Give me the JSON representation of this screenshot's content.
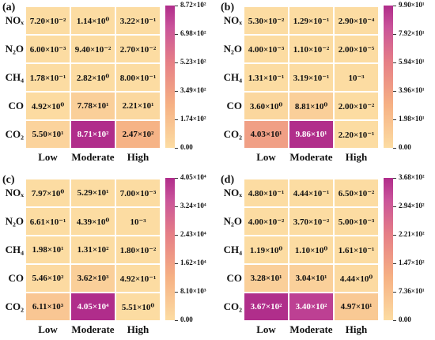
{
  "chart_data": [
    {
      "type": "heatmap",
      "panel_label": "(a)",
      "rows": [
        "NOₓ",
        "N₂O",
        "CH₄",
        "CO",
        "CO₂"
      ],
      "cols": [
        "Low",
        "Moderate",
        "High"
      ],
      "labels": [
        [
          "7.20×10⁻²",
          "1.14×10⁰",
          "3.22×10⁻¹"
        ],
        [
          "6.00×10⁻³",
          "9.40×10⁻²",
          "2.70×10⁻²"
        ],
        [
          "1.78×10⁻¹",
          "2.82×10⁰",
          "8.00×10⁻¹"
        ],
        [
          "4.92×10⁰",
          "7.78×10¹",
          "2.21×10¹"
        ],
        [
          "5.50×10¹",
          "8.71×10²",
          "2.47×10²"
        ]
      ],
      "values": [
        [
          0.072,
          1.14,
          0.322
        ],
        [
          0.006,
          0.094,
          0.027
        ],
        [
          0.178,
          2.82,
          0.8
        ],
        [
          4.92,
          77.8,
          22.1
        ],
        [
          55.0,
          871,
          247
        ]
      ],
      "vmin": 0,
      "vmax": 872,
      "colorbar_ticks": [
        "8.72×10²",
        "6.98×10²",
        "5.23×10²",
        "3.49×10²",
        "1.74×10²",
        "0.00"
      ]
    },
    {
      "type": "heatmap",
      "panel_label": "(b)",
      "rows": [
        "NOₓ",
        "N₂O",
        "CH₄",
        "CO",
        "CO₂"
      ],
      "cols": [
        "Low",
        "Moderate",
        "High"
      ],
      "labels": [
        [
          "5.30×10⁻²",
          "1.29×10⁻¹",
          "2.90×10⁻⁴"
        ],
        [
          "4.00×10⁻³",
          "1.10×10⁻²",
          "2.00×10⁻⁵"
        ],
        [
          "1.31×10⁻¹",
          "3.19×10⁻¹",
          "10⁻³"
        ],
        [
          "3.60×10⁰",
          "8.81×10⁰",
          "2.00×10⁻²"
        ],
        [
          "4.03×10¹",
          "9.86×10¹",
          "2.20×10⁻¹"
        ]
      ],
      "values": [
        [
          0.053,
          0.129,
          0.00029
        ],
        [
          0.004,
          0.011,
          2e-05
        ],
        [
          0.131,
          0.319,
          0.001
        ],
        [
          3.6,
          8.81,
          0.02
        ],
        [
          40.3,
          98.6,
          0.22
        ]
      ],
      "vmin": 0,
      "vmax": 99.0,
      "colorbar_ticks": [
        "9.90×10¹",
        "7.92×10¹",
        "5.94×10¹",
        "3.96×10¹",
        "1.98×10¹",
        "0.00"
      ]
    },
    {
      "type": "heatmap",
      "panel_label": "(c)",
      "rows": [
        "NOₓ",
        "N₂O",
        "CH₄",
        "CO",
        "CO₂"
      ],
      "cols": [
        "Low",
        "Moderate",
        "High"
      ],
      "labels": [
        [
          "7.97×10⁰",
          "5.29×10¹",
          "7.00×10⁻³"
        ],
        [
          "6.61×10⁻¹",
          "4.39×10⁰",
          "10⁻³"
        ],
        [
          "1.98×10¹",
          "1.31×10²",
          "1.80×10⁻²"
        ],
        [
          "5.46×10²",
          "3.62×10³",
          "4.92×10⁻¹"
        ],
        [
          "6.11×10³",
          "4.05×10⁴",
          "5.51×10⁰"
        ]
      ],
      "values": [
        [
          7.97,
          52.9,
          0.007
        ],
        [
          0.661,
          4.39,
          0.001
        ],
        [
          19.8,
          131,
          0.018
        ],
        [
          546,
          3620,
          0.492
        ],
        [
          6110,
          40500,
          5.51
        ]
      ],
      "vmin": 0,
      "vmax": 40500,
      "colorbar_ticks": [
        "4.05×10⁴",
        "3.24×10⁴",
        "2.43×10⁴",
        "1.62×10⁴",
        "8.10×10³",
        "0.00"
      ]
    },
    {
      "type": "heatmap",
      "panel_label": "(d)",
      "rows": [
        "NOₓ",
        "N₂O",
        "CH₄",
        "CO",
        "CO₂"
      ],
      "cols": [
        "Low",
        "Moderate",
        "High"
      ],
      "labels": [
        [
          "4.80×10⁻¹",
          "4.44×10⁻¹",
          "6.50×10⁻²"
        ],
        [
          "4.00×10⁻²",
          "3.70×10⁻²",
          "5.00×10⁻³"
        ],
        [
          "1.19×10⁰",
          "1.10×10⁰",
          "1.61×10⁻¹"
        ],
        [
          "3.28×10¹",
          "3.04×10¹",
          "4.44×10⁰"
        ],
        [
          "3.67×10²",
          "3.40×10²",
          "4.97×10¹"
        ]
      ],
      "values": [
        [
          0.48,
          0.444,
          0.065
        ],
        [
          0.04,
          0.037,
          0.005
        ],
        [
          1.19,
          1.1,
          0.161
        ],
        [
          32.8,
          30.4,
          4.44
        ],
        [
          367,
          340,
          49.7
        ]
      ],
      "vmin": 0,
      "vmax": 368,
      "colorbar_ticks": [
        "3.68×10²",
        "2.94×10²",
        "2.21×10²",
        "1.47×10²",
        "7.36×10¹",
        "0.00"
      ]
    }
  ]
}
